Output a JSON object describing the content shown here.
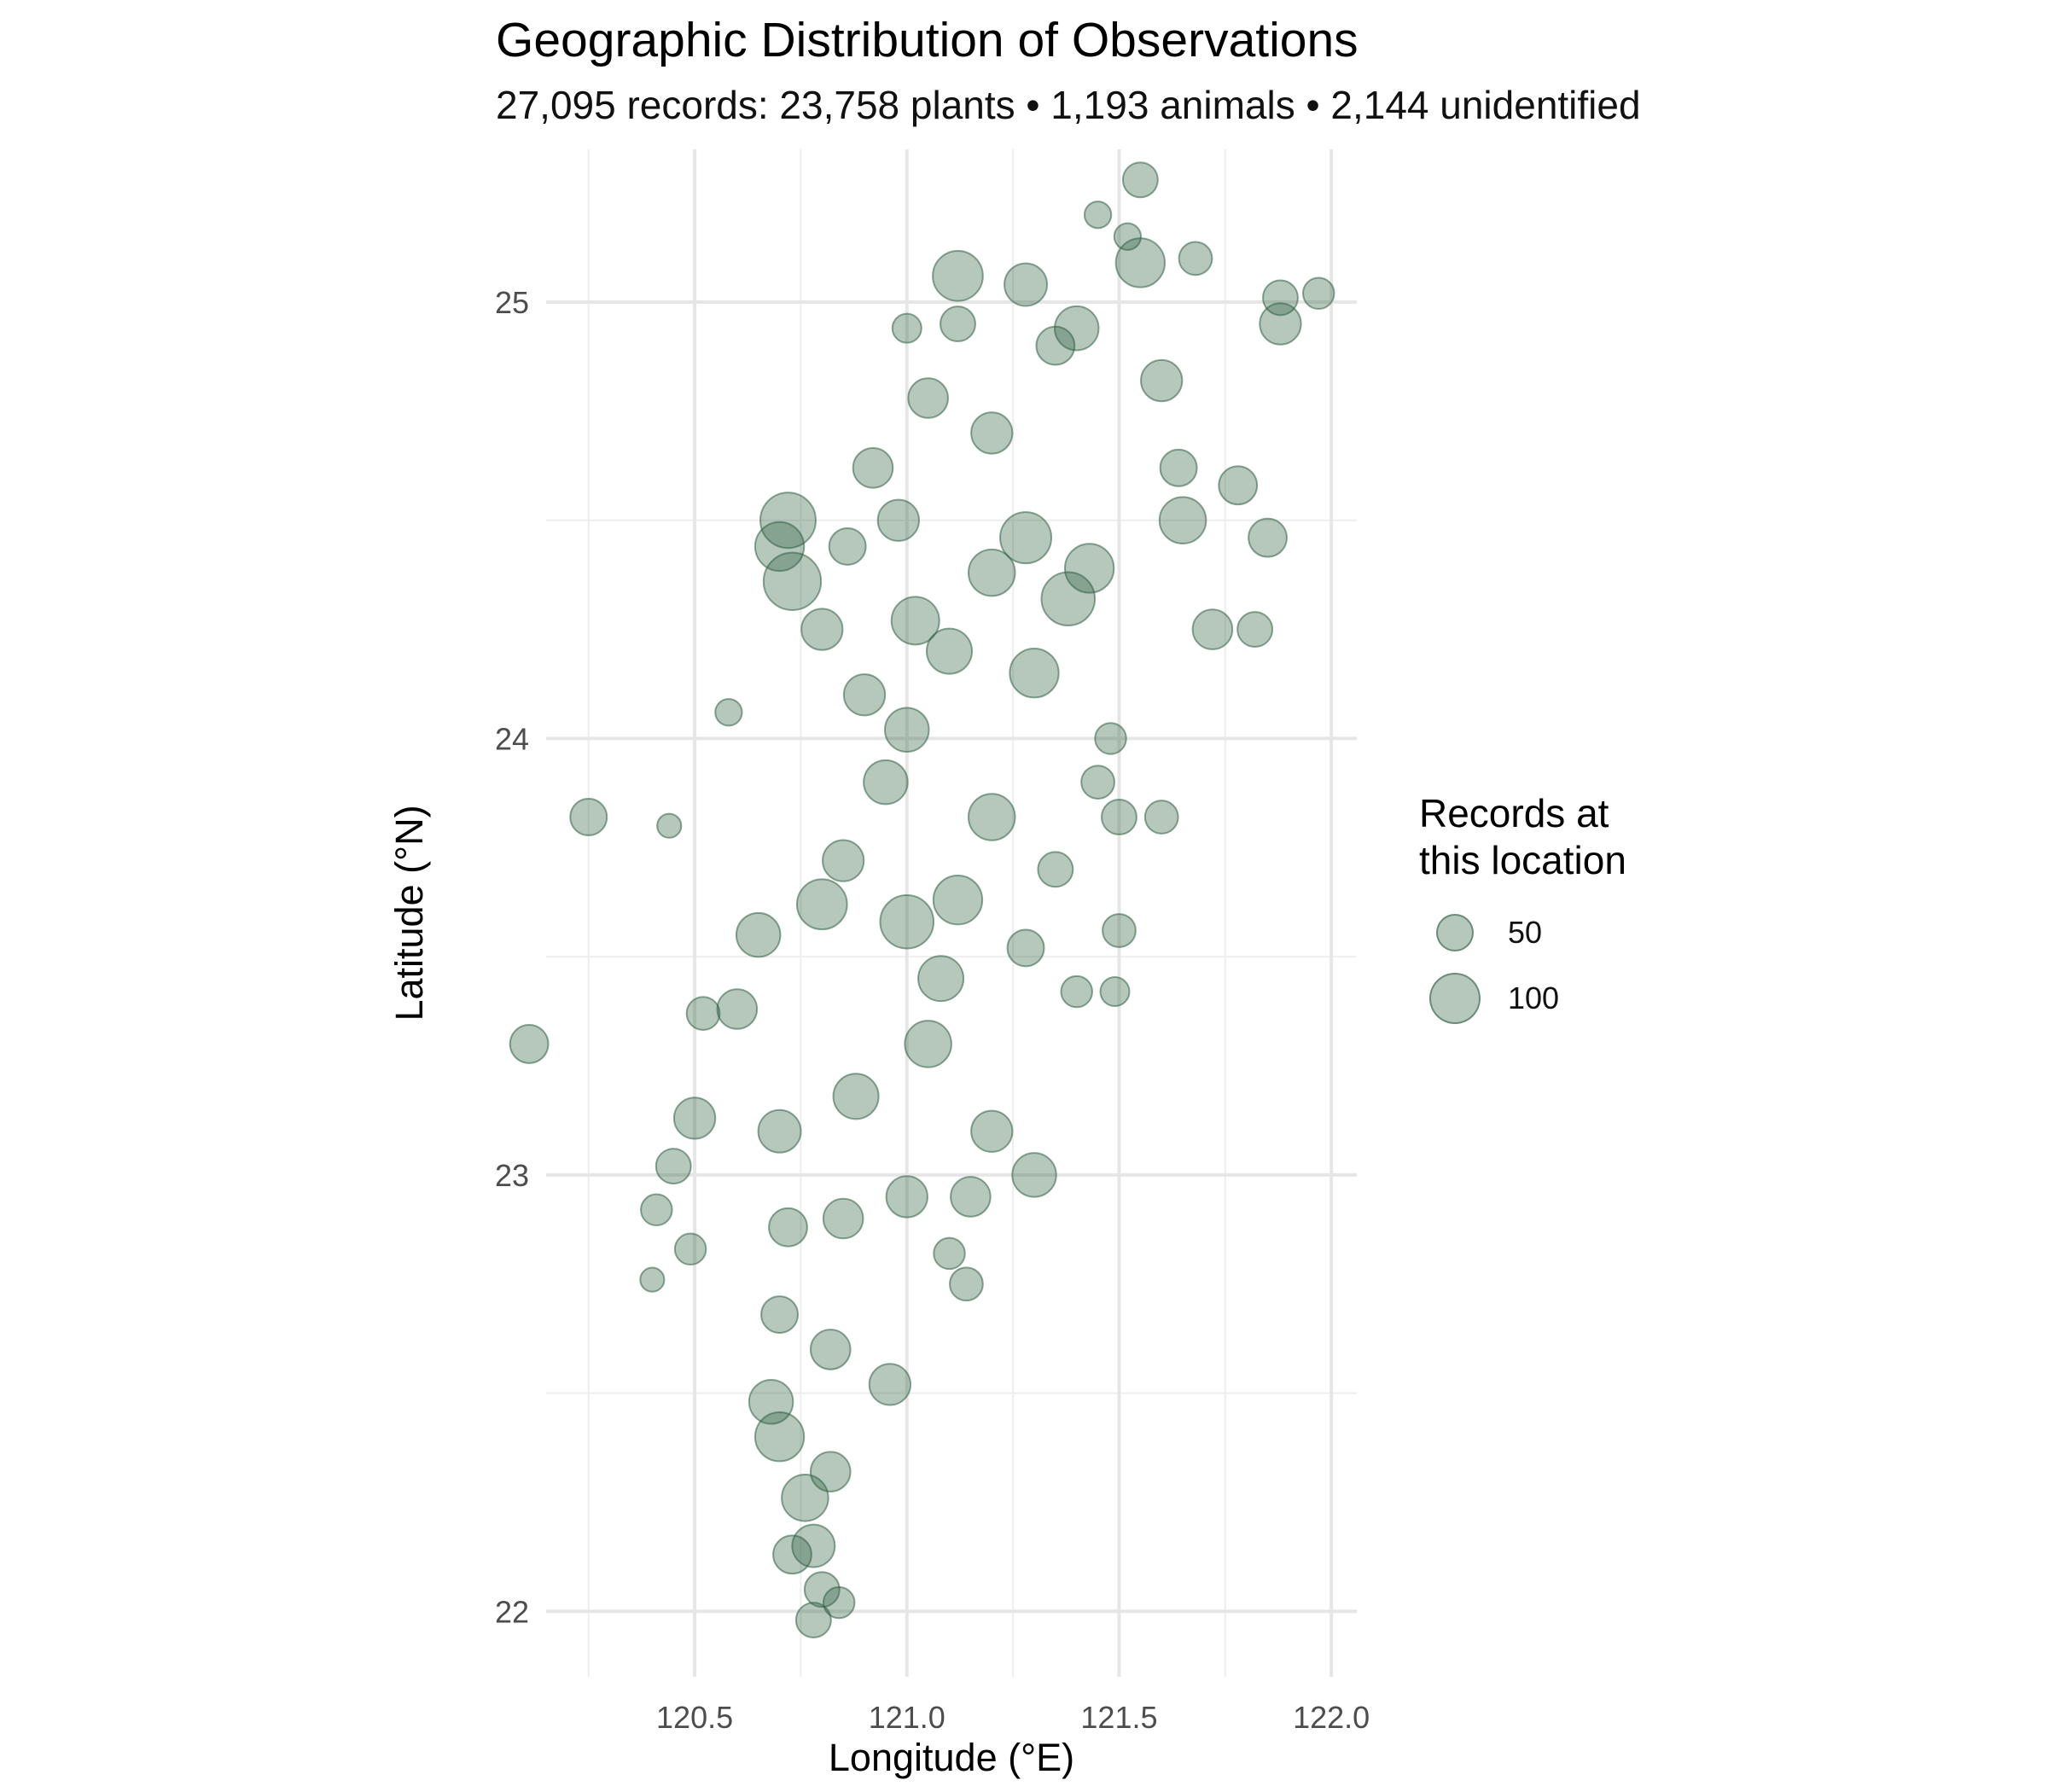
{
  "chart_data": {
    "type": "scatter",
    "title": "Geographic Distribution of Observations",
    "subtitle": "27,095 records: 23,758 plants • 1,193 animals • 2,144 unidentified",
    "xlabel": "Longitude (°E)",
    "ylabel": "Latitude (°N)",
    "xlim": [
      120.15,
      122.06
    ],
    "ylim": [
      21.85,
      25.35
    ],
    "x_ticks": [
      120.5,
      121.0,
      121.5,
      122.0
    ],
    "x_tick_labels": [
      "120.5",
      "121.0",
      "121.5",
      "122.0"
    ],
    "y_ticks": [
      22,
      23,
      24,
      25
    ],
    "y_tick_labels": [
      "22",
      "23",
      "24",
      "25"
    ],
    "grid": true,
    "point_color": "#2d5f3f",
    "point_alpha": 0.35,
    "size_variable": "Records at this location",
    "legend": {
      "title": "Records at\nthis location",
      "position": "right",
      "entries": [
        {
          "label": "50",
          "value": 50
        },
        {
          "label": "100",
          "value": 100
        }
      ]
    },
    "series": [
      {
        "points": [
          [
            120.25,
            23.82,
            45
          ],
          [
            120.11,
            23.3,
            50
          ],
          [
            120.44,
            23.8,
            15
          ],
          [
            120.58,
            24.06,
            20
          ],
          [
            121.55,
            25.28,
            40
          ],
          [
            121.52,
            25.15,
            20
          ],
          [
            121.12,
            25.06,
            95
          ],
          [
            121.28,
            25.04,
            65
          ],
          [
            121.35,
            24.9,
            50
          ],
          [
            121.05,
            24.78,
            55
          ],
          [
            120.72,
            24.5,
            120
          ],
          [
            120.7,
            24.44,
            90
          ],
          [
            120.73,
            24.36,
            130
          ],
          [
            120.8,
            24.25,
            60
          ],
          [
            121.88,
            25.01,
            40
          ],
          [
            121.97,
            25.02,
            30
          ],
          [
            121.55,
            25.09,
            90
          ],
          [
            121.6,
            24.82,
            60
          ],
          [
            121.4,
            24.94,
            70
          ],
          [
            121.2,
            24.7,
            60
          ],
          [
            121.28,
            24.46,
            100
          ],
          [
            121.43,
            24.39,
            90
          ],
          [
            121.65,
            24.5,
            80
          ],
          [
            121.78,
            24.58,
            50
          ],
          [
            121.72,
            24.25,
            55
          ],
          [
            121.48,
            24.0,
            30
          ],
          [
            121.5,
            23.82,
            40
          ],
          [
            121.5,
            23.56,
            35
          ],
          [
            121.49,
            23.42,
            25
          ],
          [
            121.2,
            23.82,
            80
          ],
          [
            121.3,
            24.15,
            90
          ],
          [
            121.0,
            24.02,
            70
          ],
          [
            120.9,
            24.1,
            60
          ],
          [
            120.85,
            23.72,
            60
          ],
          [
            121.0,
            23.58,
            110
          ],
          [
            121.12,
            23.63,
            90
          ],
          [
            120.8,
            23.62,
            95
          ],
          [
            120.65,
            23.55,
            70
          ],
          [
            120.6,
            23.38,
            55
          ],
          [
            120.5,
            23.13,
            60
          ],
          [
            120.45,
            23.02,
            40
          ],
          [
            120.49,
            22.83,
            30
          ],
          [
            120.4,
            22.76,
            15
          ],
          [
            120.41,
            22.92,
            30
          ],
          [
            120.52,
            23.37,
            35
          ],
          [
            120.7,
            23.1,
            65
          ],
          [
            120.88,
            23.18,
            75
          ],
          [
            121.05,
            23.3,
            80
          ],
          [
            121.2,
            23.1,
            60
          ],
          [
            121.3,
            23.0,
            70
          ],
          [
            121.15,
            22.95,
            55
          ],
          [
            121.0,
            22.95,
            60
          ],
          [
            120.85,
            22.9,
            55
          ],
          [
            120.72,
            22.88,
            50
          ],
          [
            120.7,
            22.68,
            45
          ],
          [
            120.82,
            22.6,
            55
          ],
          [
            120.96,
            22.52,
            60
          ],
          [
            120.68,
            22.48,
            70
          ],
          [
            120.7,
            22.4,
            90
          ],
          [
            120.82,
            22.32,
            55
          ],
          [
            120.76,
            22.26,
            80
          ],
          [
            120.78,
            22.15,
            65
          ],
          [
            120.73,
            22.13,
            50
          ],
          [
            120.8,
            22.05,
            40
          ],
          [
            120.78,
            21.98,
            40
          ],
          [
            120.84,
            22.02,
            30
          ],
          [
            121.14,
            22.75,
            35
          ],
          [
            121.1,
            22.82,
            30
          ],
          [
            121.4,
            23.42,
            30
          ],
          [
            121.6,
            23.82,
            35
          ],
          [
            121.64,
            24.62,
            45
          ],
          [
            121.85,
            24.46,
            50
          ],
          [
            121.82,
            24.25,
            40
          ],
          [
            121.88,
            24.95,
            60
          ],
          [
            121.68,
            25.1,
            35
          ],
          [
            121.45,
            25.2,
            20
          ],
          [
            121.12,
            24.95,
            40
          ],
          [
            121.0,
            24.94,
            25
          ],
          [
            120.98,
            24.5,
            60
          ],
          [
            120.92,
            24.62,
            55
          ],
          [
            120.86,
            24.44,
            45
          ],
          [
            120.95,
            23.9,
            70
          ],
          [
            121.08,
            23.45,
            75
          ],
          [
            121.28,
            23.52,
            45
          ],
          [
            121.35,
            23.7,
            40
          ],
          [
            121.45,
            23.9,
            35
          ],
          [
            121.38,
            24.32,
            110
          ],
          [
            121.2,
            24.38,
            80
          ],
          [
            121.1,
            24.2,
            75
          ],
          [
            121.02,
            24.27,
            85
          ]
        ]
      }
    ]
  }
}
